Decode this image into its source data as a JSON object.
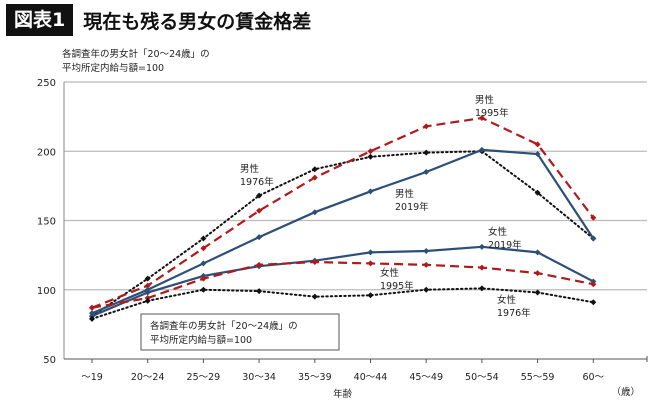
{
  "header": {
    "badge": "図表1",
    "title": "現在も残る男女の賃金格差"
  },
  "note_top": [
    "各調査年の男女計「20～24歳」の",
    "平均所定内給与額=100"
  ],
  "chart_data": {
    "type": "line",
    "xlabel": "年齢",
    "x_unit": "（歳）",
    "categories": [
      "～19",
      "20～24",
      "25～29",
      "30～34",
      "35～39",
      "40～44",
      "45～49",
      "50～54",
      "55～59",
      "60～"
    ],
    "ylim": [
      50,
      250
    ],
    "yticks": [
      50,
      100,
      150,
      200,
      250
    ],
    "grid": true,
    "annotation_box": [
      "各調査年の男女計「20～24歳」の",
      "平均所定内給与額=100"
    ],
    "series": [
      {
        "name": "男性 1976年",
        "label": [
          "男性",
          "1976年"
        ],
        "style": "dotted",
        "color": "#111111",
        "values": [
          81,
          108,
          137,
          168,
          187,
          196,
          199,
          200,
          170,
          137
        ]
      },
      {
        "name": "男性 1995年",
        "label": [
          "男性",
          "1995年"
        ],
        "style": "dashed",
        "color": "#b01a1a",
        "values": [
          87,
          103,
          130,
          157,
          181,
          200,
          218,
          224,
          205,
          152
        ]
      },
      {
        "name": "男性 2019年",
        "label": [
          "男性",
          "2019年"
        ],
        "style": "solid",
        "color": "#2d4f77",
        "values": [
          83,
          100,
          119,
          138,
          156,
          171,
          185,
          201,
          198,
          137
        ]
      },
      {
        "name": "女性 2019年",
        "label": [
          "女性",
          "2019年"
        ],
        "style": "solid",
        "color": "#2d4f77",
        "values": [
          81,
          98,
          110,
          117,
          121,
          127,
          128,
          131,
          127,
          106
        ]
      },
      {
        "name": "女性 1995年",
        "label": [
          "女性",
          "1995年"
        ],
        "style": "dashed",
        "color": "#b01a1a",
        "values": [
          87,
          94,
          108,
          118,
          120,
          119,
          118,
          116,
          112,
          104
        ]
      },
      {
        "name": "女性 1976年",
        "label": [
          "女性",
          "1976年"
        ],
        "style": "dotted",
        "color": "#111111",
        "values": [
          79,
          92,
          100,
          99,
          95,
          96,
          100,
          101,
          98,
          91
        ]
      }
    ]
  }
}
